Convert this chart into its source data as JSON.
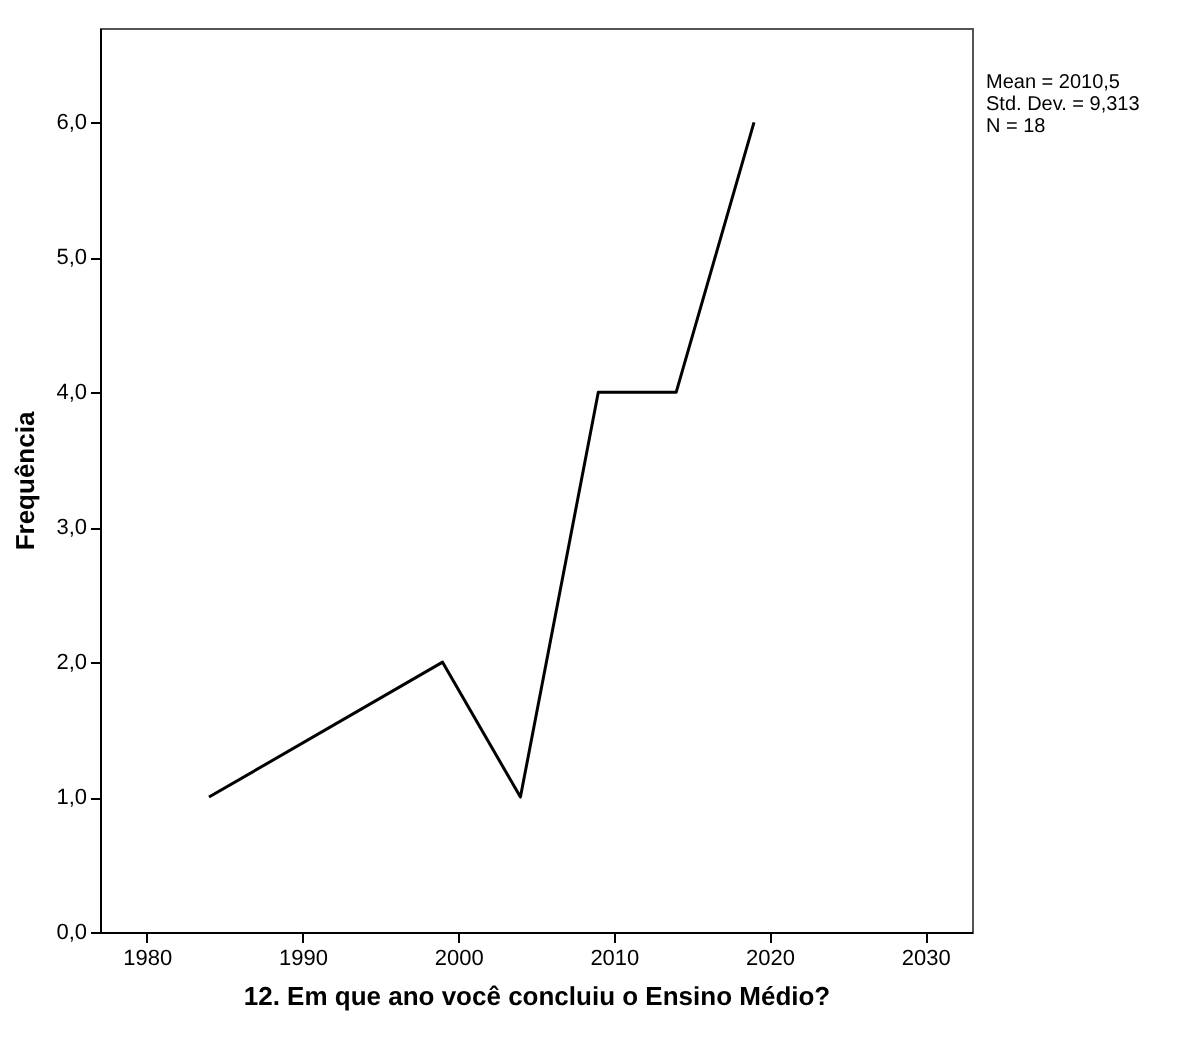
{
  "chart_data": {
    "type": "line",
    "xlabel": "12. Em que ano você concluiu o Ensino Médio?",
    "ylabel": "Frequência",
    "x": [
      1984,
      1999,
      2004,
      2009,
      2014,
      2019
    ],
    "series": [
      {
        "color": "#000000",
        "values": [
          1,
          2,
          1,
          4,
          4,
          6
        ]
      }
    ],
    "xlim": [
      1977,
      2033
    ],
    "xticks": [
      1980,
      1990,
      2000,
      2010,
      2020,
      2030
    ],
    "ylim": [
      0,
      6.7
    ],
    "yticks": [
      {
        "value": 0,
        "label": "0,0"
      },
      {
        "value": 1,
        "label": "1,0"
      },
      {
        "value": 2,
        "label": "2,0"
      },
      {
        "value": 3,
        "label": "3,0"
      },
      {
        "value": 4,
        "label": "4,0"
      },
      {
        "value": 5,
        "label": "5,0"
      },
      {
        "value": 6,
        "label": "6,0"
      }
    ],
    "annotations": [
      "Mean = 2010,5",
      "Std. Dev. = 9,313",
      "N = 18"
    ],
    "grid": false,
    "marker": "none",
    "line_style": "solid"
  }
}
